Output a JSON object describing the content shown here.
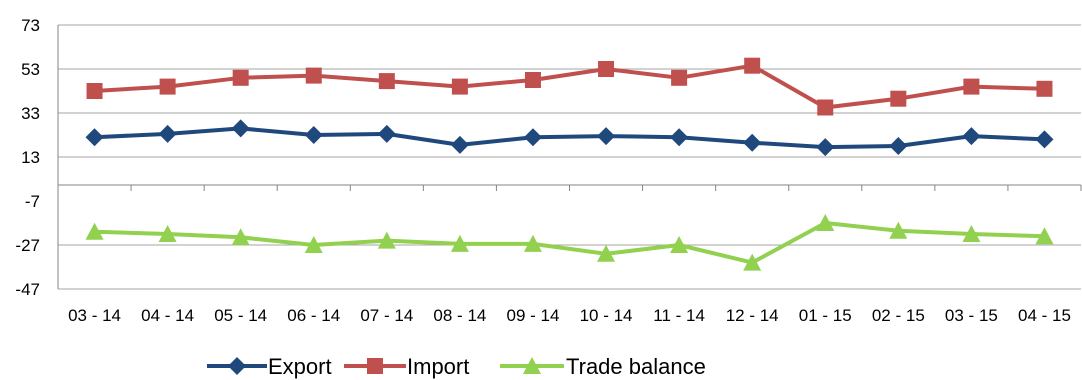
{
  "chart_data": {
    "type": "line",
    "title": "",
    "xlabel": "",
    "ylabel": "",
    "categories": [
      "03 - 14",
      "04 - 14",
      "05 - 14",
      "06 - 14",
      "07 - 14",
      "08 - 14",
      "09 - 14",
      "10 - 14",
      "11 - 14",
      "12 - 14",
      "01 - 15",
      "02 - 15",
      "03 - 15",
      "04 - 15"
    ],
    "yticks": [
      "73",
      "53",
      "33",
      "13",
      "-7",
      "-27",
      "-47"
    ],
    "ylim": [
      -47,
      73
    ],
    "grid": true,
    "legend_position": "bottom",
    "series": [
      {
        "name": "Export",
        "color": "#1F497D",
        "marker": "diamond",
        "values": [
          22,
          23.5,
          26,
          23,
          23.5,
          18.5,
          22,
          22.5,
          22,
          19.5,
          17.5,
          18,
          22.5,
          21
        ]
      },
      {
        "name": "Import",
        "color": "#C0504D",
        "marker": "square",
        "values": [
          43,
          45,
          49,
          50,
          47.5,
          45,
          48,
          53,
          49,
          54.5,
          35.5,
          39.5,
          45,
          44
        ]
      },
      {
        "name": "Trade balance",
        "color": "#92D050",
        "marker": "triangle",
        "values": [
          -21,
          -22,
          -23.5,
          -27,
          -25,
          -26.5,
          -26.5,
          -31,
          -27,
          -35,
          -17,
          -20.5,
          -22,
          -23
        ]
      }
    ]
  }
}
